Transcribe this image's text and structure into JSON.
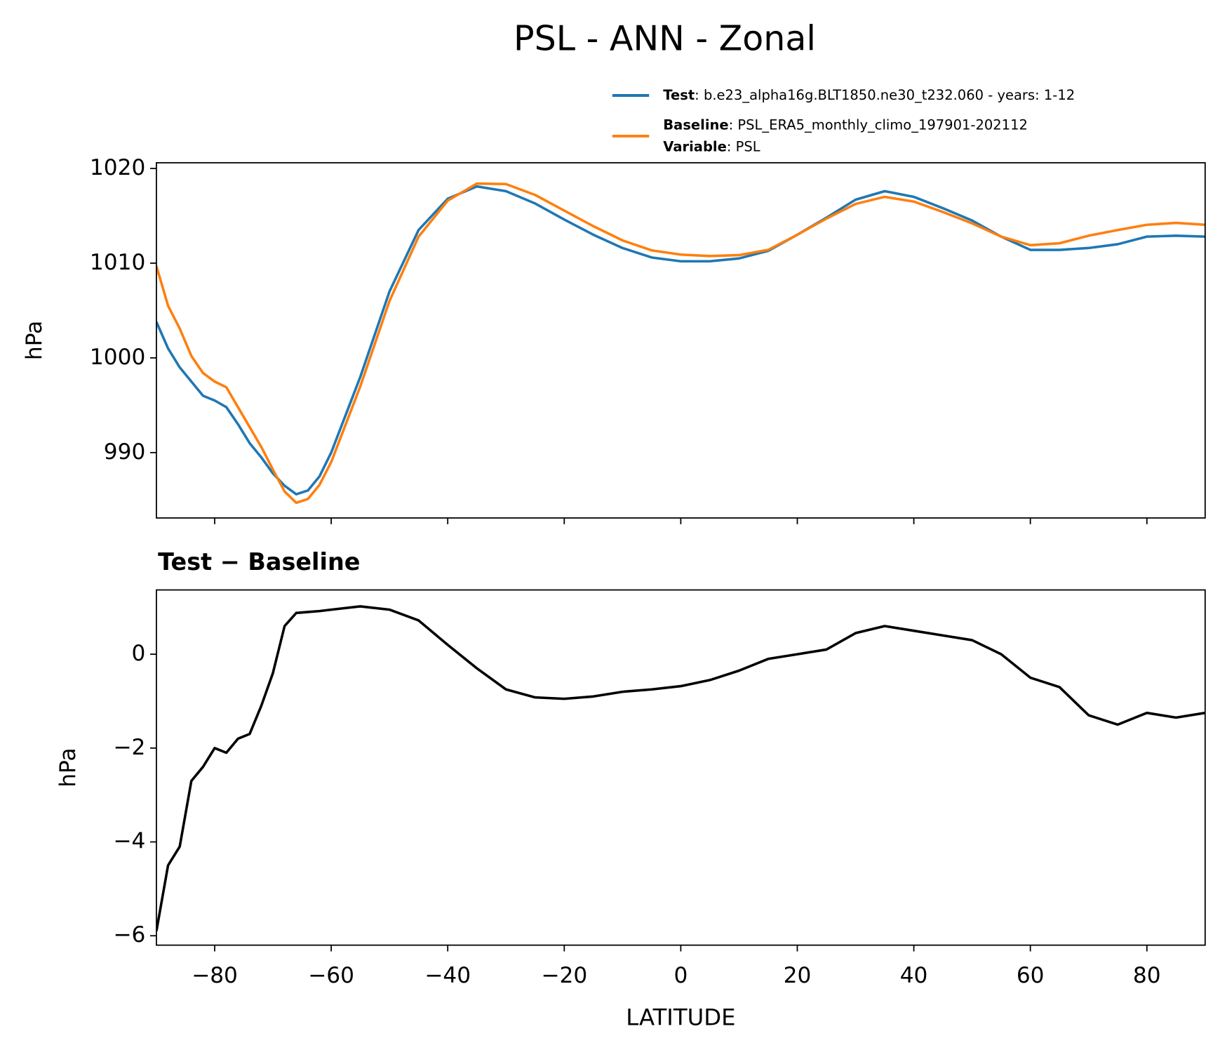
{
  "title": "PSL - ANN - Zonal",
  "chart_data": [
    {
      "type": "line",
      "ylabel": "hPa",
      "xlim": [
        -90,
        90
      ],
      "ylim": [
        983.1,
        1020.6
      ],
      "xticks": [
        -80,
        -60,
        -40,
        -20,
        0,
        20,
        40,
        60,
        80
      ],
      "xtick_labels": false,
      "yticks": [
        990,
        1000,
        1010,
        1020
      ],
      "x": [
        -90,
        -88,
        -86,
        -84,
        -82,
        -80,
        -78,
        -76,
        -74,
        -72,
        -70,
        -68,
        -66,
        -64,
        -62,
        -60,
        -55,
        -50,
        -45,
        -40,
        -35,
        -30,
        -25,
        -20,
        -15,
        -10,
        -5,
        0,
        5,
        10,
        15,
        20,
        25,
        30,
        35,
        40,
        45,
        50,
        55,
        60,
        65,
        70,
        75,
        80,
        85,
        90
      ],
      "series": [
        {
          "name": "Test",
          "description": ": b.e23_alpha16g.BLT1850.ne30_t232.060 - years: 1-12",
          "color": "#1f77b4",
          "values": [
            1003.8,
            1001,
            999,
            997.5,
            996,
            995.5,
            994.8,
            993,
            991,
            989.5,
            987.8,
            986.5,
            985.6,
            986,
            987.5,
            990,
            998,
            1007,
            1013.5,
            1016.8,
            1018.1,
            1017.6,
            1016.3,
            1014.6,
            1013,
            1011.6,
            1010.6,
            1010.2,
            1010.2,
            1010.5,
            1011.3,
            1013,
            1014.8,
            1016.7,
            1017.6,
            1017,
            1015.8,
            1014.5,
            1012.8,
            1011.4,
            1011.4,
            1011.6,
            1012,
            1012.8,
            1012.9,
            1012.8
          ]
        },
        {
          "name": "Baseline",
          "description": ": PSL_ERA5_monthly_climo_197901-202112",
          "color": "#ff7f0e",
          "extra": {
            "name": "Variable",
            "description": ": PSL"
          },
          "values": [
            1009.7,
            1005.5,
            1003.1,
            1000.2,
            998.4,
            997.5,
            996.9,
            994.8,
            992.7,
            990.6,
            988.2,
            985.9,
            984.7,
            985.1,
            986.6,
            989.0,
            997.0,
            1006.0,
            1012.8,
            1016.6,
            1018.4,
            1018.35,
            1017.2,
            1015.55,
            1013.9,
            1012.4,
            1011.35,
            1010.9,
            1010.75,
            1010.85,
            1011.4,
            1013.0,
            1014.7,
            1016.25,
            1017.0,
            1016.5,
            1015.4,
            1014.2,
            1012.8,
            1011.9,
            1012.1,
            1012.9,
            1013.5,
            1014.05,
            1014.25,
            1014.05
          ]
        }
      ]
    },
    {
      "type": "line",
      "title": "Test − Baseline",
      "xlabel": "LATITUDE",
      "ylabel": "hPa",
      "xlim": [
        -90,
        90
      ],
      "ylim": [
        -6.2,
        1.37
      ],
      "xticks": [
        {
          "value": -80,
          "label": "−80"
        },
        {
          "value": -60,
          "label": "−60"
        },
        {
          "value": -40,
          "label": "−40"
        },
        {
          "value": -20,
          "label": "−20"
        },
        0,
        20,
        40,
        60,
        80
      ],
      "xtick_labels": true,
      "yticks": [
        {
          "value": -6,
          "label": "−6"
        },
        {
          "value": -4,
          "label": "−4"
        },
        {
          "value": -2,
          "label": "−2"
        },
        0
      ],
      "x": [
        -90,
        -88,
        -86,
        -84,
        -82,
        -80,
        -78,
        -76,
        -74,
        -72,
        -70,
        -68,
        -66,
        -64,
        -62,
        -60,
        -55,
        -50,
        -45,
        -40,
        -35,
        -30,
        -25,
        -20,
        -15,
        -10,
        -5,
        0,
        5,
        10,
        15,
        20,
        25,
        30,
        35,
        40,
        45,
        50,
        55,
        60,
        65,
        70,
        75,
        80,
        85,
        90
      ],
      "series": [
        {
          "color": "#000000",
          "values": [
            -5.9,
            -4.5,
            -4.1,
            -2.7,
            -2.4,
            -2.0,
            -2.1,
            -1.8,
            -1.7,
            -1.1,
            -0.4,
            0.6,
            0.88,
            0.9,
            0.92,
            0.95,
            1.02,
            0.95,
            0.72,
            0.2,
            -0.3,
            -0.75,
            -0.92,
            -0.95,
            -0.9,
            -0.8,
            -0.75,
            -0.68,
            -0.55,
            -0.35,
            -0.1,
            0.0,
            0.1,
            0.45,
            0.6,
            0.5,
            0.4,
            0.3,
            0.0,
            -0.5,
            -0.7,
            -1.3,
            -1.5,
            -1.25,
            -1.35,
            -1.25
          ]
        }
      ]
    }
  ]
}
